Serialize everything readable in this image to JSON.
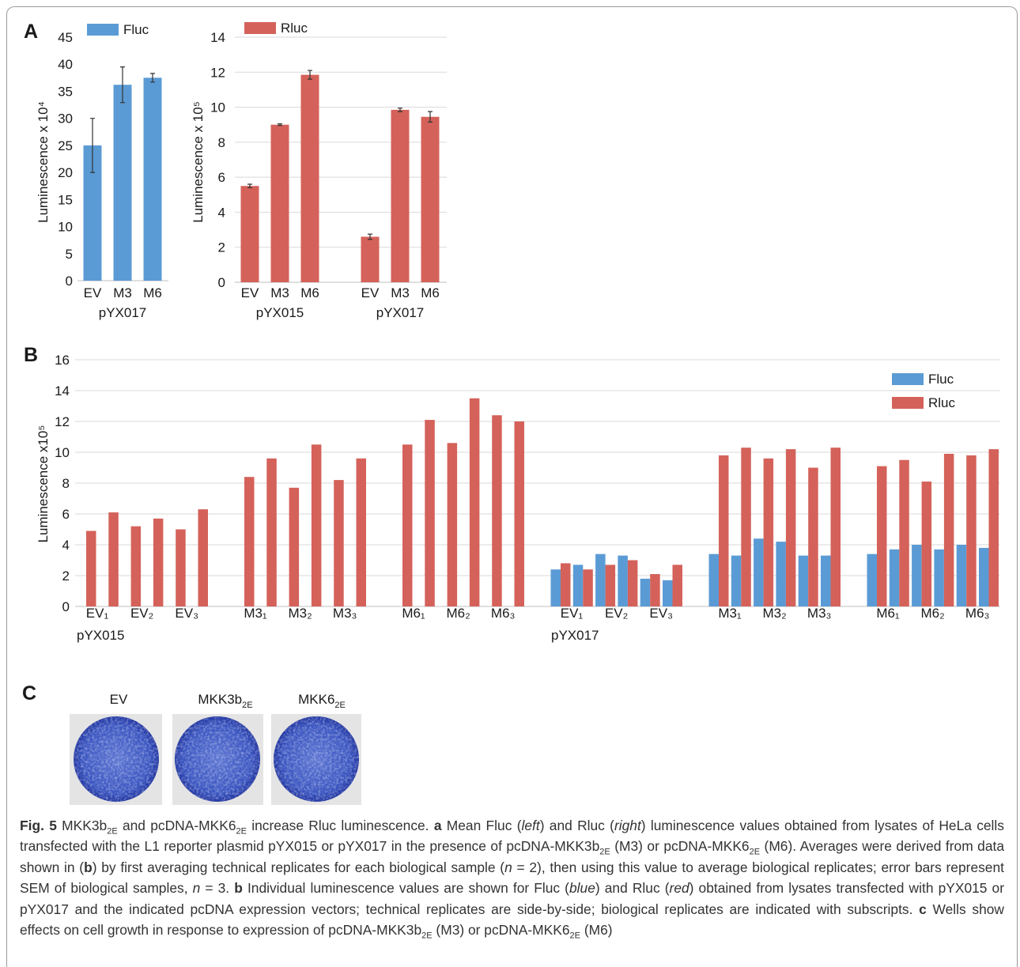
{
  "panel_labels": [
    "A",
    "B",
    "C"
  ],
  "chart_data": [
    {
      "type": "bar",
      "ylabel": "Luminescence x 10⁴",
      "categories": [
        "EV",
        "M3",
        "M6"
      ],
      "group_labels": [
        "pYX017"
      ],
      "series": [
        {
          "name": "Fluc",
          "color": "#5b9bd5",
          "values": [
            25,
            36.2,
            37.5
          ],
          "errors": [
            5,
            3.3,
            0.8
          ]
        }
      ],
      "ylim": [
        0,
        45
      ],
      "yticks": [
        0,
        5,
        10,
        15,
        20,
        25,
        30,
        35,
        40,
        45
      ],
      "grid": false,
      "legend": "top-left"
    },
    {
      "type": "bar",
      "ylabel": "Luminescence x 10⁵",
      "categories": [
        "EV",
        "M3",
        "M6",
        "EV",
        "M3",
        "M6"
      ],
      "group_labels": [
        "pYX015",
        "pYX017"
      ],
      "series": [
        {
          "name": "Rluc",
          "color": "#d4625a",
          "values": [
            5.5,
            9,
            11.85,
            2.6,
            9.85,
            9.45
          ],
          "errors": [
            0.1,
            0.05,
            0.25,
            0.15,
            0.1,
            0.3
          ]
        }
      ],
      "ylim": [
        0,
        14
      ],
      "yticks": [
        0,
        2,
        4,
        6,
        8,
        10,
        12,
        14
      ],
      "grid": true,
      "legend": "top-left"
    },
    {
      "type": "bar",
      "ylabel": "Luminescence x10⁵",
      "categories": [
        "EV₁",
        null,
        "EV₂",
        null,
        "EV₃",
        null,
        "M3₁",
        null,
        "M3₂",
        null,
        "M3₃",
        null,
        "M6₁",
        null,
        "M6₂",
        null,
        "M6₃",
        null,
        "EV₁",
        null,
        "EV₂",
        null,
        "EV₃",
        null,
        "M3₁",
        null,
        "M3₂",
        null,
        "M3₃",
        null,
        "M6₁",
        null,
        "M6₂",
        null,
        "M6₃",
        null
      ],
      "group_labels": [
        "pYX015",
        "pYX017"
      ],
      "series": [
        {
          "name": "Fluc",
          "color": "#5b9bd5",
          "values": [
            null,
            null,
            null,
            null,
            null,
            null,
            null,
            null,
            null,
            null,
            null,
            null,
            null,
            null,
            null,
            null,
            null,
            null,
            2.4,
            2.7,
            3.4,
            3.3,
            1.8,
            1.7,
            3.4,
            3.3,
            4.4,
            4.2,
            3.3,
            3.3,
            3.4,
            3.7,
            4.0,
            3.7,
            4.0,
            3.8
          ]
        },
        {
          "name": "Rluc",
          "color": "#d4625a",
          "values": [
            4.9,
            6.1,
            5.2,
            5.7,
            5.0,
            6.3,
            8.4,
            9.6,
            7.7,
            10.5,
            8.2,
            9.6,
            10.5,
            12.1,
            10.6,
            13.5,
            12.4,
            12.0,
            2.8,
            2.4,
            2.7,
            3.0,
            2.1,
            2.7,
            9.8,
            10.3,
            9.6,
            10.2,
            9.0,
            10.3,
            9.1,
            9.5,
            8.1,
            9.9,
            9.8,
            10.2
          ]
        }
      ],
      "ylim": [
        0,
        16
      ],
      "yticks": [
        0,
        2,
        4,
        6,
        8,
        10,
        12,
        14,
        16
      ],
      "grid": true,
      "legend": "top-right"
    }
  ],
  "wells": [
    {
      "label": "EV"
    },
    {
      "label": "MKK3b",
      "sub": "2E"
    },
    {
      "label": "MKK6",
      "sub": "2E"
    }
  ],
  "caption": [
    "Fig. 5",
    " MKK3b",
    "2E",
    " and pcDNA-MKK6",
    "2E",
    " increase Rluc luminescence. ",
    "a",
    " Mean Fluc (",
    "left",
    ") and Rluc (",
    "right",
    ") luminescence values obtained from lysates of HeLa cells transfected with the L1 reporter plasmid pYX015 or pYX017 in the presence of pcDNA-MKK3b",
    "2E",
    " (M3) or pcDNA-MKK6",
    "2E",
    " (M6). Averages were derived from data shown in (",
    "b",
    ") by first averaging technical replicates for each biological sample (",
    "n",
    " = 2), then using this value to average biological replicates; error bars represent SEM of biological samples, ",
    "n",
    " = 3. ",
    "b",
    " Individual luminescence values are shown for Fluc (",
    "blue",
    ") and Rluc (",
    "red",
    ") obtained from lysates transfected with pYX015 or pYX017 and the indicated pcDNA expression vectors; technical replicates are side-by-side; biological replicates are indicated with subscripts. ",
    "c",
    " Wells show effects on cell growth in response to expression of pcDNA-MKK3b",
    "2E",
    " (M3) or pcDNA-MKK6",
    "2E",
    " (M6)"
  ]
}
